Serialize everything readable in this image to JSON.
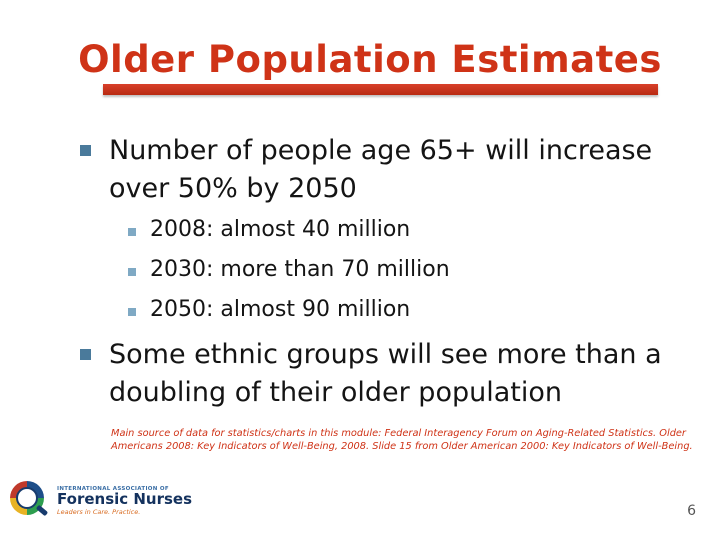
{
  "slide": {
    "title": "Older Population Estimates",
    "bullets": [
      {
        "text": "Number of people age 65+ will increase over 50% by 2050",
        "sub": [
          "2008: almost 40 million",
          "2030: more than 70 million",
          "2050: almost 90 million"
        ]
      },
      {
        "text": "Some ethnic groups will see more than a doubling of their older population",
        "sub": []
      }
    ],
    "footnote": "Main source of data for statistics/charts in this module: Federal Interagency Forum on Aging-Related Statistics. Older Americans 2008: Key Indicators of Well-Being, 2008.  Slide 15 from Older American 2000: Key Indicators of Well-Being.",
    "logo": {
      "org_small": "INTERNATIONAL ASSOCIATION OF",
      "org_name": "Forensic Nurses",
      "tagline": "Leaders in Care. Practice."
    },
    "page_number": "6",
    "colors": {
      "title_red": "#cf3317",
      "bullet_square": "#4a7a9b",
      "sub_bullet_square": "#7fa9c4",
      "body_text": "#141414"
    }
  }
}
